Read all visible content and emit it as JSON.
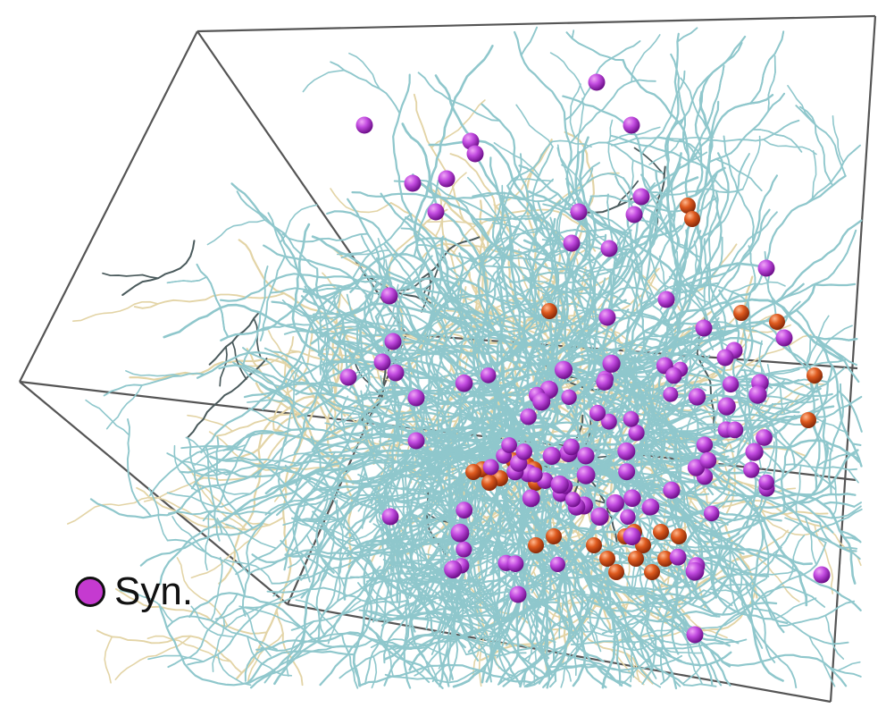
{
  "legend": {
    "label": "Syn.",
    "swatch_color": "#c53ad0"
  },
  "colors": {
    "background": "#ffffff",
    "box_edges": "#555555",
    "dendrite_primary": "#8fc7cc",
    "dendrite_secondary": "#e3d4a6",
    "dendrite_dark": "#4a5a5c",
    "synapse": "#b21fd0",
    "synapse_highlight": "#f0a6f7",
    "other_marker": "#d64a16",
    "other_marker_highlight": "#ffb98f"
  },
  "scene": {
    "description_icon": "neuron-reconstruction-3d",
    "synapse_count_visible": 110,
    "other_marker_count_visible": 28
  }
}
